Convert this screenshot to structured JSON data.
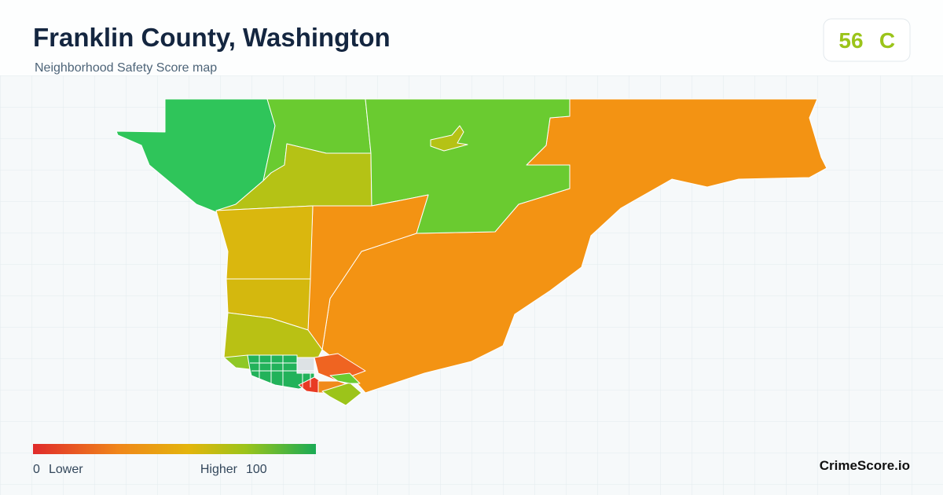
{
  "header": {
    "title": "Franklin County, Washington",
    "subtitle": "Neighborhood Safety Score map"
  },
  "score": {
    "value": "56",
    "grade": "C"
  },
  "legend": {
    "min": "0",
    "min_label": "Lower",
    "max_label": "Higher",
    "max": "100"
  },
  "brand": "CrimeScore.io"
}
